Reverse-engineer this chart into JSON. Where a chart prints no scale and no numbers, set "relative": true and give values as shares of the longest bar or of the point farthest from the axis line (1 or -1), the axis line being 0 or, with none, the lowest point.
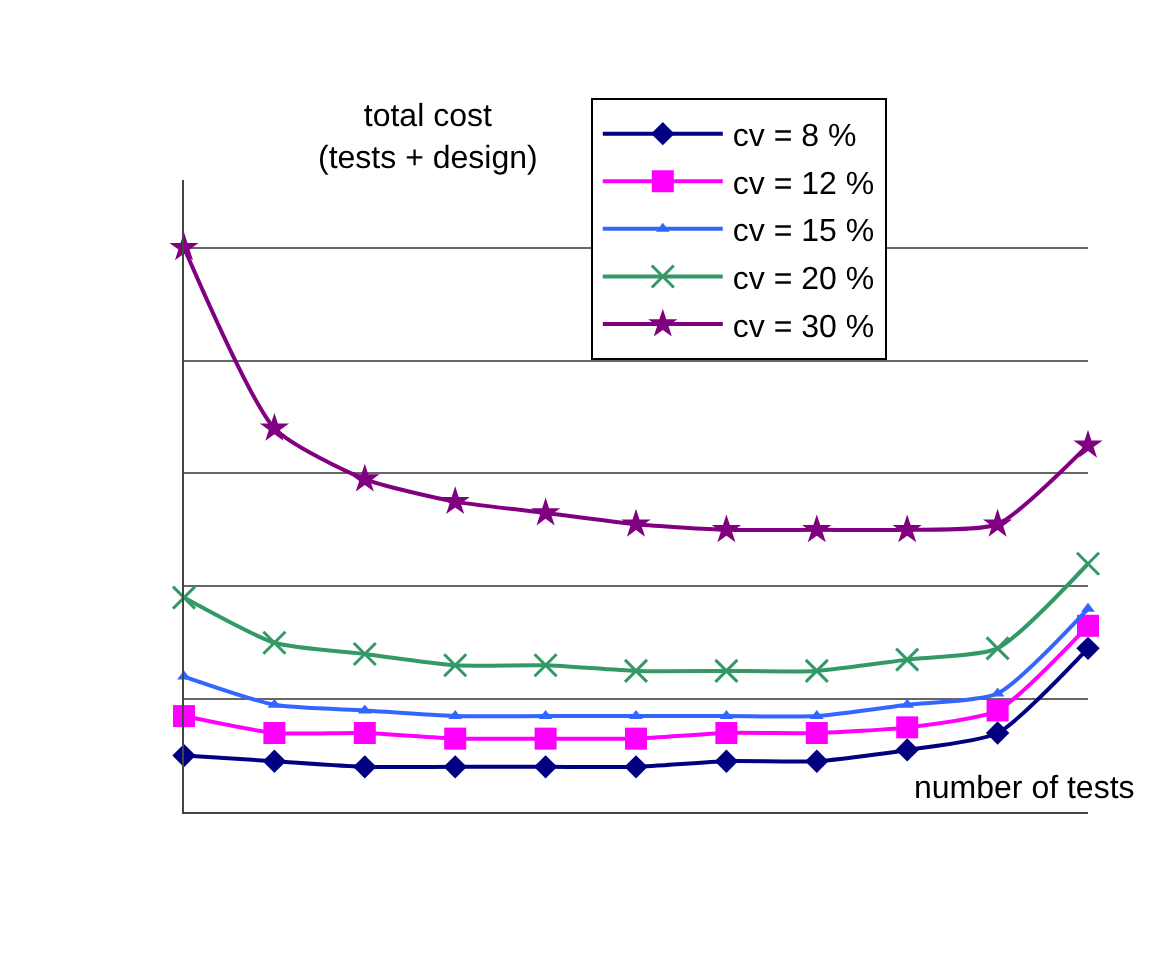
{
  "chart_data": {
    "type": "line",
    "relative": true,
    "ylabel": "total cost\n(tests + design)",
    "xlabel": "number of tests",
    "categories": [
      null,
      null,
      null,
      null,
      null,
      null,
      null,
      null,
      null,
      null,
      null
    ],
    "grid": "y",
    "legend": "top right",
    "series": [
      {
        "name": "cv = 8 %",
        "color": "#000080",
        "marker": "diamond",
        "values": [
          0.1,
          0.09,
          0.08,
          0.08,
          0.08,
          0.08,
          0.09,
          0.09,
          0.11,
          0.14,
          0.29
        ]
      },
      {
        "name": "cv = 12 %",
        "color": "#ff00ff",
        "marker": "square",
        "values": [
          0.17,
          0.14,
          0.14,
          0.13,
          0.13,
          0.13,
          0.14,
          0.14,
          0.15,
          0.18,
          0.33
        ]
      },
      {
        "name": "cv = 15 %",
        "color": "#3366ff",
        "marker": "triangle",
        "values": [
          0.24,
          0.19,
          0.18,
          0.17,
          0.17,
          0.17,
          0.17,
          0.17,
          0.19,
          0.21,
          0.36
        ]
      },
      {
        "name": "cv = 20 %",
        "color": "#339966",
        "marker": "cross",
        "values": [
          0.38,
          0.3,
          0.28,
          0.26,
          0.26,
          0.25,
          0.25,
          0.25,
          0.27,
          0.29,
          0.44
        ]
      },
      {
        "name": "cv = 30 %",
        "color": "#800080",
        "marker": "star",
        "values": [
          1,
          0.68,
          0.59,
          0.55,
          0.53,
          0.51,
          0.5,
          0.5,
          0.5,
          0.51,
          0.65
        ]
      }
    ]
  }
}
